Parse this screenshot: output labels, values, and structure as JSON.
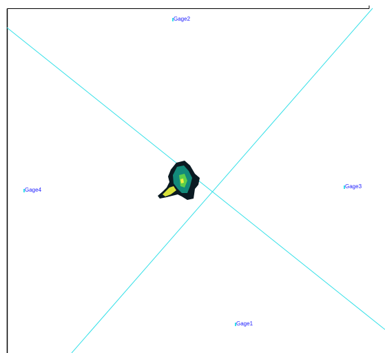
{
  "gages": [
    "Gage1",
    "Gage2",
    "Gage3",
    "Gage4"
  ]
}
